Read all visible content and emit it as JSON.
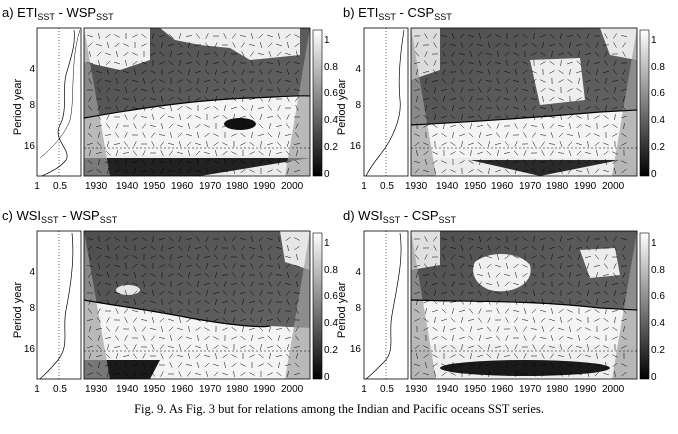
{
  "figure": {
    "panels": [
      {
        "id": "a",
        "label_prefix": "a) ",
        "title_left": "ETI",
        "title_left_sub": "SST",
        "title_sep": " - ",
        "title_right": "WSP",
        "title_right_sub": "SST"
      },
      {
        "id": "b",
        "label_prefix": "b) ",
        "title_left": "ETI",
        "title_left_sub": "SST",
        "title_sep": " - ",
        "title_right": "CSP",
        "title_right_sub": "SST"
      },
      {
        "id": "c",
        "label_prefix": "c) ",
        "title_left": "WSI",
        "title_left_sub": "SST",
        "title_sep": " - ",
        "title_right": "WSP",
        "title_right_sub": "SST"
      },
      {
        "id": "d",
        "label_prefix": "d) ",
        "title_left": "WSI",
        "title_left_sub": "SST",
        "title_sep": " - ",
        "title_right": "CSP",
        "title_right_sub": "SST"
      }
    ],
    "y_axis_label": "Period year",
    "y_ticks": [
      "4",
      "8",
      "16"
    ],
    "x_ticks": [
      "1930",
      "1940",
      "1950",
      "1960",
      "1970",
      "1980",
      "1990",
      "2000"
    ],
    "side_ticks": [
      "1",
      "0.5"
    ],
    "colorbar_ticks": [
      "1",
      "0.8",
      "0.6",
      "0.4",
      "0.2",
      "0"
    ],
    "caption": "Fig. 9. As Fig. 3 but for relations among the Indian and Pacific oceans SST series."
  },
  "colors": {
    "dark": "#0d0d0d",
    "light": "#f2f2f2",
    "mid": "#8c8c8c"
  }
}
